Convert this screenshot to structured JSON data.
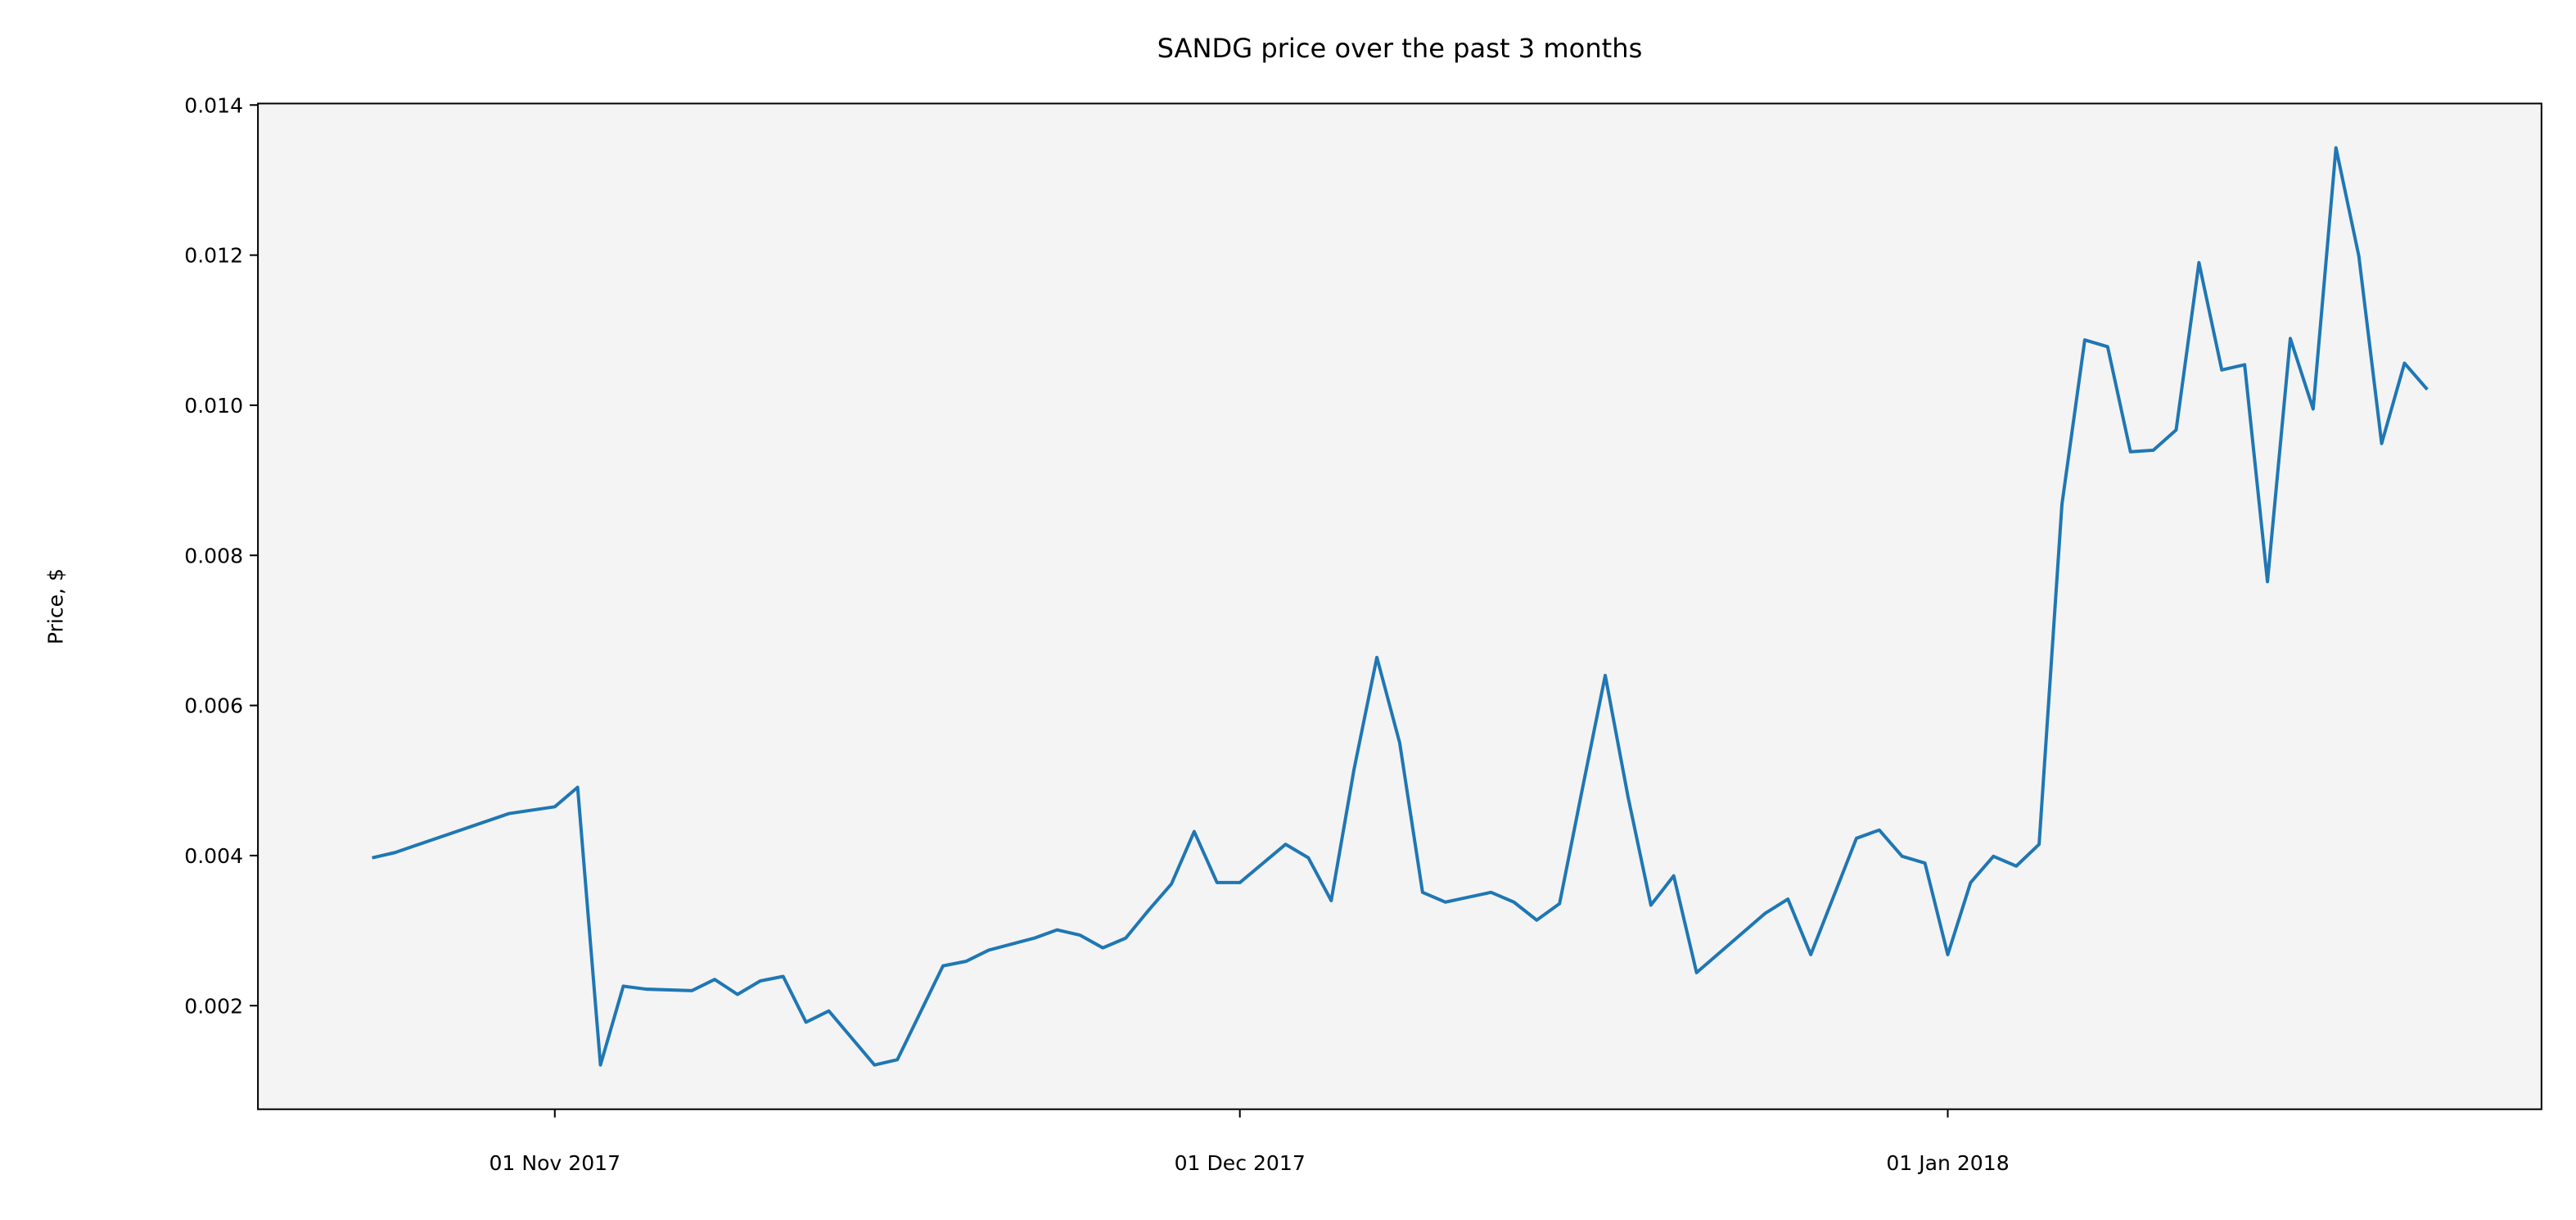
{
  "chart_data": {
    "type": "line",
    "title": "SANDG price over the past 3 months",
    "y_label": "Price, $",
    "x": [
      "2017-10-24",
      "2017-10-25",
      "2017-10-30",
      "2017-11-01",
      "2017-11-02",
      "2017-11-03",
      "2017-11-04",
      "2017-11-05",
      "2017-11-07",
      "2017-11-08",
      "2017-11-09",
      "2017-11-10",
      "2017-11-11",
      "2017-11-12",
      "2017-11-13",
      "2017-11-15",
      "2017-11-16",
      "2017-11-18",
      "2017-11-19",
      "2017-11-20",
      "2017-11-22",
      "2017-11-23",
      "2017-11-24",
      "2017-11-25",
      "2017-11-26",
      "2017-11-27",
      "2017-11-28",
      "2017-11-29",
      "2017-11-30",
      "2017-12-01",
      "2017-12-03",
      "2017-12-04",
      "2017-12-05",
      "2017-12-06",
      "2017-12-07",
      "2017-12-08",
      "2017-12-09",
      "2017-12-10",
      "2017-12-12",
      "2017-12-13",
      "2017-12-14",
      "2017-12-15",
      "2017-12-16",
      "2017-12-17",
      "2017-12-18",
      "2017-12-19",
      "2017-12-20",
      "2017-12-21",
      "2017-12-24",
      "2017-12-25",
      "2017-12-26",
      "2017-12-28",
      "2017-12-29",
      "2017-12-30",
      "2017-12-31",
      "2018-01-01",
      "2018-01-02",
      "2018-01-03",
      "2018-01-04",
      "2018-01-05",
      "2018-01-06",
      "2018-01-07",
      "2018-01-08",
      "2018-01-09",
      "2018-01-10",
      "2018-01-11",
      "2018-01-12",
      "2018-01-13",
      "2018-01-14",
      "2018-01-15",
      "2018-01-16",
      "2018-01-17",
      "2018-01-18",
      "2018-01-19",
      "2018-01-20",
      "2018-01-21",
      "2018-01-22"
    ],
    "series": [
      {
        "name": "SANDG",
        "color": "#1f77b4",
        "values": [
          0.00397,
          0.00404,
          0.00456,
          0.00465,
          0.00491,
          0.00121,
          0.00226,
          0.00222,
          0.0022,
          0.00235,
          0.00215,
          0.00233,
          0.00239,
          0.00178,
          0.00193,
          0.00121,
          0.00128,
          0.00253,
          0.00259,
          0.00274,
          0.0029,
          0.00301,
          0.00294,
          0.00277,
          0.0029,
          0.00327,
          0.00362,
          0.00432,
          0.00364,
          0.00364,
          0.00415,
          0.00397,
          0.0034,
          0.00515,
          0.00664,
          0.0055,
          0.00351,
          0.00338,
          0.00351,
          0.00338,
          0.00314,
          0.00336,
          0.00489,
          0.0064,
          0.00478,
          0.00334,
          0.00373,
          0.00244,
          0.00323,
          0.00342,
          0.00268,
          0.00423,
          0.00434,
          0.00399,
          0.0039,
          0.00268,
          0.00364,
          0.00399,
          0.00386,
          0.00415,
          0.00868,
          0.01087,
          0.01078,
          0.00938,
          0.0094,
          0.00967,
          0.0119,
          0.01047,
          0.01054,
          0.00765,
          0.01089,
          0.00995,
          0.01343,
          0.01199,
          0.00949,
          0.01056,
          0.01021
        ]
      }
    ],
    "xlim": [
      "2017-10-19",
      "2018-01-27"
    ],
    "xticks": [
      {
        "value": "2017-11-01",
        "label": "01 Nov 2017"
      },
      {
        "value": "2017-12-01",
        "label": "01 Dec 2017"
      },
      {
        "value": "2018-01-01",
        "label": "01 Jan 2018"
      }
    ],
    "ylim": [
      0.00062,
      0.01402
    ],
    "yticks": [
      0.002,
      0.004,
      0.006,
      0.008,
      {
        "value": 0.01,
        "label": "0.010"
      },
      0.012,
      0.014
    ],
    "background": "#f4f4f4"
  }
}
